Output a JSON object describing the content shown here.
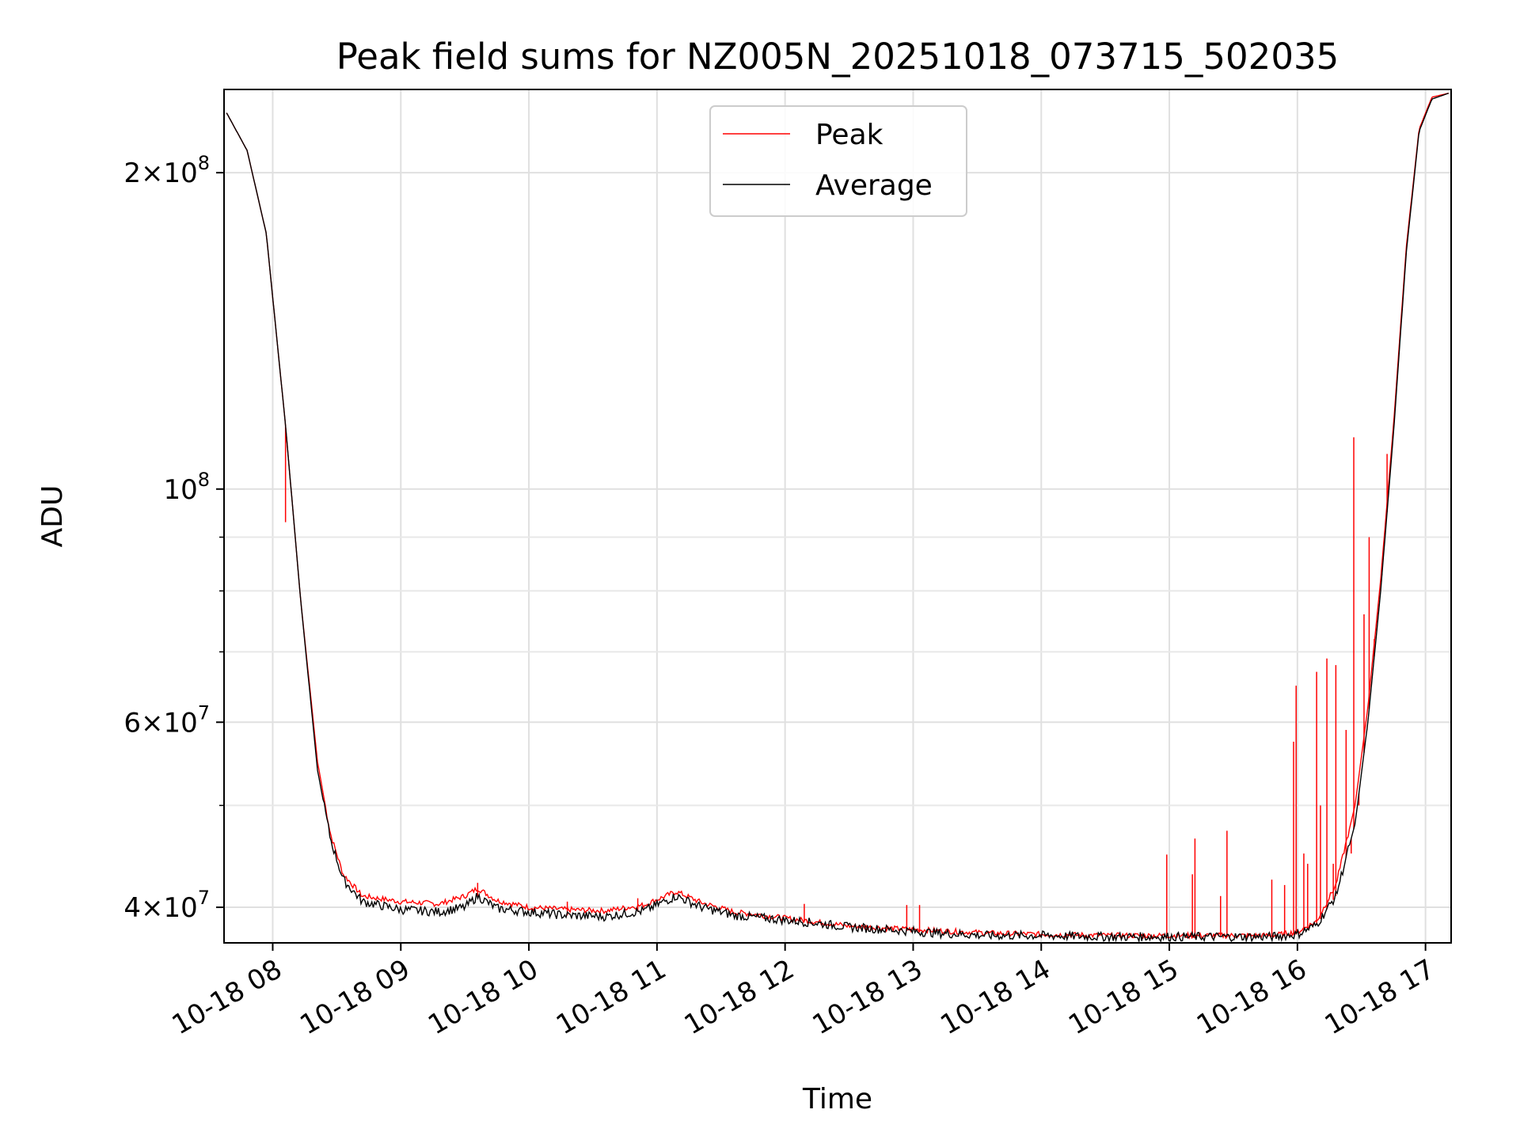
{
  "chart_data": {
    "type": "line",
    "title": "Peak field sums for NZ005N_20251018_073715_502035",
    "xlabel": "Time",
    "ylabel": "ADU",
    "yscale": "log",
    "ylim": [
      37000000,
      240000000
    ],
    "xlim": [
      7.62,
      17.2
    ],
    "grid": true,
    "legend_position": "top-center",
    "x_ticks": [
      {
        "value": 8,
        "label": "10-18 08"
      },
      {
        "value": 9,
        "label": "10-18 09"
      },
      {
        "value": 10,
        "label": "10-18 10"
      },
      {
        "value": 11,
        "label": "10-18 11"
      },
      {
        "value": 12,
        "label": "10-18 12"
      },
      {
        "value": 13,
        "label": "10-18 13"
      },
      {
        "value": 14,
        "label": "10-18 14"
      },
      {
        "value": 15,
        "label": "10-18 15"
      },
      {
        "value": 16,
        "label": "10-18 16"
      },
      {
        "value": 17,
        "label": "10-18 17"
      }
    ],
    "y_major_ticks": [
      {
        "value": 200000000,
        "base": "2",
        "times": "×",
        "ten": "10",
        "exp": "8"
      },
      {
        "value": 100000000,
        "base": "",
        "times": "",
        "ten": "10",
        "exp": "8"
      },
      {
        "value": 60000000,
        "base": "6",
        "times": "×",
        "ten": "10",
        "exp": "7"
      },
      {
        "value": 40000000,
        "base": "4",
        "times": "×",
        "ten": "10",
        "exp": "7"
      }
    ],
    "y_minor_ticks": [
      50000000,
      70000000,
      80000000,
      90000000
    ],
    "series": [
      {
        "name": "Peak",
        "color": "#ff0000",
        "points": [
          [
            7.64,
            228000000
          ],
          [
            7.8,
            210000000
          ],
          [
            7.95,
            175000000
          ],
          [
            8.1,
            115000000
          ],
          [
            8.22,
            78000000
          ],
          [
            8.35,
            55000000
          ],
          [
            8.45,
            47000000
          ],
          [
            8.55,
            43000000
          ],
          [
            8.7,
            41000000
          ],
          [
            9.0,
            40500000
          ],
          [
            9.3,
            40300000
          ],
          [
            9.5,
            41000000
          ],
          [
            9.6,
            41700000
          ],
          [
            9.75,
            40600000
          ],
          [
            10.0,
            40000000
          ],
          [
            10.3,
            39800000
          ],
          [
            10.6,
            39700000
          ],
          [
            10.9,
            40200000
          ],
          [
            11.15,
            41400000
          ],
          [
            11.35,
            40400000
          ],
          [
            11.6,
            39600000
          ],
          [
            11.9,
            39200000
          ],
          [
            12.2,
            38800000
          ],
          [
            12.5,
            38400000
          ],
          [
            12.8,
            38200000
          ],
          [
            13.2,
            38000000
          ],
          [
            13.6,
            37800000
          ],
          [
            14.0,
            37700000
          ],
          [
            14.5,
            37600000
          ],
          [
            15.0,
            37600000
          ],
          [
            15.5,
            37600000
          ],
          [
            15.8,
            37600000
          ],
          [
            16.0,
            37900000
          ],
          [
            16.15,
            38800000
          ],
          [
            16.3,
            42000000
          ],
          [
            16.45,
            50000000
          ],
          [
            16.55,
            62000000
          ],
          [
            16.65,
            82000000
          ],
          [
            16.75,
            115000000
          ],
          [
            16.85,
            170000000
          ],
          [
            16.95,
            220000000
          ],
          [
            17.05,
            236000000
          ],
          [
            17.18,
            238000000
          ]
        ],
        "spikes": [
          [
            8.1,
            93000000
          ],
          [
            9.6,
            42200000
          ],
          [
            10.3,
            40500000
          ],
          [
            10.85,
            40800000
          ],
          [
            12.15,
            40300000
          ],
          [
            12.95,
            40200000
          ],
          [
            13.05,
            40200000
          ],
          [
            14.98,
            44900000
          ],
          [
            15.18,
            43000000
          ],
          [
            15.2,
            46500000
          ],
          [
            15.4,
            41000000
          ],
          [
            15.45,
            47300000
          ],
          [
            15.8,
            42500000
          ],
          [
            15.9,
            42000000
          ],
          [
            15.97,
            57500000
          ],
          [
            15.99,
            65000000
          ],
          [
            16.05,
            45000000
          ],
          [
            16.08,
            44000000
          ],
          [
            16.15,
            67000000
          ],
          [
            16.18,
            50000000
          ],
          [
            16.23,
            69000000
          ],
          [
            16.28,
            44000000
          ],
          [
            16.3,
            68000000
          ],
          [
            16.38,
            59000000
          ],
          [
            16.42,
            45000000
          ],
          [
            16.44,
            112000000
          ],
          [
            16.48,
            50000000
          ],
          [
            16.52,
            76000000
          ],
          [
            16.56,
            90000000
          ],
          [
            16.6,
            72000000
          ],
          [
            16.66,
            85000000
          ],
          [
            16.7,
            108000000
          ]
        ]
      },
      {
        "name": "Average",
        "color": "#000000",
        "points": [
          [
            7.64,
            228000000
          ],
          [
            7.8,
            210000000
          ],
          [
            7.95,
            175000000
          ],
          [
            8.1,
            115000000
          ],
          [
            8.22,
            78000000
          ],
          [
            8.35,
            54000000
          ],
          [
            8.45,
            46500000
          ],
          [
            8.55,
            42500000
          ],
          [
            8.7,
            40500000
          ],
          [
            9.0,
            39800000
          ],
          [
            9.3,
            39600000
          ],
          [
            9.5,
            40000000
          ],
          [
            9.6,
            41000000
          ],
          [
            9.75,
            39900000
          ],
          [
            10.0,
            39600000
          ],
          [
            10.3,
            39300000
          ],
          [
            10.6,
            39200000
          ],
          [
            10.9,
            39700000
          ],
          [
            11.15,
            41000000
          ],
          [
            11.35,
            40000000
          ],
          [
            11.6,
            39300000
          ],
          [
            11.9,
            39000000
          ],
          [
            12.2,
            38700000
          ],
          [
            12.5,
            38300000
          ],
          [
            12.8,
            38100000
          ],
          [
            13.2,
            37800000
          ],
          [
            13.6,
            37600000
          ],
          [
            14.0,
            37600000
          ],
          [
            14.5,
            37500000
          ],
          [
            15.0,
            37500000
          ],
          [
            15.5,
            37500000
          ],
          [
            15.8,
            37500000
          ],
          [
            16.0,
            37700000
          ],
          [
            16.15,
            38500000
          ],
          [
            16.3,
            41000000
          ],
          [
            16.45,
            48000000
          ],
          [
            16.55,
            60000000
          ],
          [
            16.65,
            80000000
          ],
          [
            16.75,
            113000000
          ],
          [
            16.85,
            168000000
          ],
          [
            16.95,
            219000000
          ],
          [
            17.05,
            235000000
          ],
          [
            17.18,
            238000000
          ]
        ]
      }
    ]
  }
}
